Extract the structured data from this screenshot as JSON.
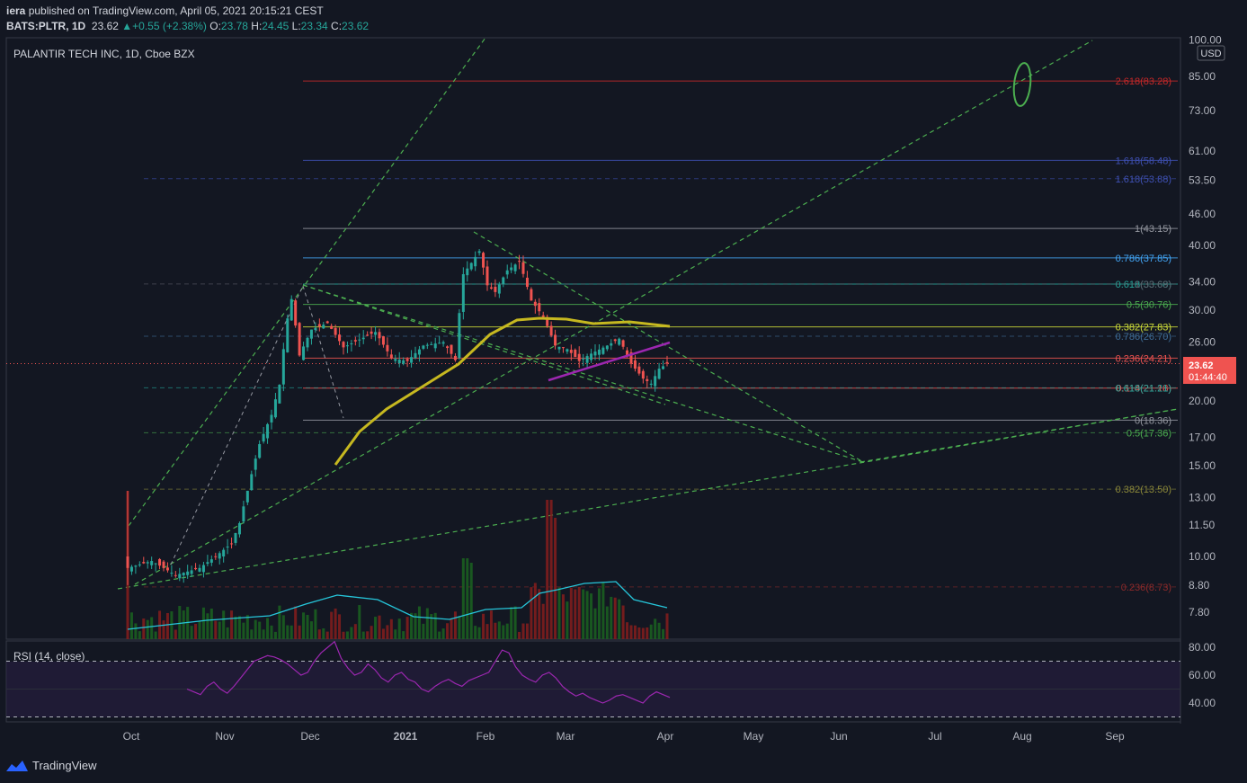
{
  "header": {
    "publisher": "iera",
    "published_text": "published on TradingView.com, April 05, 2021 20:15:21 CEST",
    "symbol": "BATS:PLTR, 1D",
    "last": "23.62",
    "change": "+0.55 (+2.38%)",
    "o_label": "O:",
    "o": "23.78",
    "h_label": "H:",
    "h": "24.45",
    "l_label": "L:",
    "l": "23.34",
    "c_label": "C:",
    "c": "23.62"
  },
  "chart_title": "PALANTIR TECH INC, 1D, Cboe BZX",
  "currency": "USD",
  "price_tag": {
    "price": "23.62",
    "countdown": "01:44:40"
  },
  "rsi_title": "RSI (14, close)",
  "brand": "TradingView",
  "colors": {
    "background": "#131722",
    "up": "#26a69a",
    "down": "#ef5350",
    "ma": "#c6b820",
    "purple_line": "#9c27b0",
    "trend": "#4caf50",
    "volume_ma": "#26c6da",
    "rsi": "#9c27b0"
  },
  "chart_data": [
    {
      "type": "candlestick",
      "title": "PALANTIR TECH INC, 1D, Cboe BZX",
      "y_scale": "log",
      "ylim": [
        7.2,
        102
      ],
      "x_ticks": [
        "Oct",
        "Nov",
        "Dec",
        "2021",
        "Feb",
        "Mar",
        "Apr",
        "May",
        "Jun",
        "Jul",
        "Aug",
        "Sep"
      ],
      "y_ticks": [
        "100.00",
        "85.00",
        "73.00",
        "61.00",
        "53.50",
        "46.00",
        "40.00",
        "34.00",
        "30.00",
        "26.00",
        "20.00",
        "17.00",
        "15.00",
        "13.00",
        "11.50",
        "10.00",
        "8.80",
        "7.80"
      ],
      "fib_levels": [
        {
          "label": "2.618(83.28)",
          "value": 83.28,
          "color": "#c62828"
        },
        {
          "label": "1.618(58.48)",
          "value": 58.48,
          "color": "#3f51b5"
        },
        {
          "label": "1.618(53.88)",
          "value": 53.88,
          "color": "#3f51b5"
        },
        {
          "label": "1(43.15)",
          "value": 43.15,
          "color": "#9598a1"
        },
        {
          "label": "0.786(37.85)",
          "value": 37.85,
          "color": "#42a5f5"
        },
        {
          "label": "0.618(33.68)",
          "value": 33.68,
          "color": "#26a69a"
        },
        {
          "label": "1(33.69)",
          "value": 33.69,
          "color": "#5b5e68"
        },
        {
          "label": "0.5(30.76)",
          "value": 30.76,
          "color": "#4caf50"
        },
        {
          "label": "0.382(27.83)",
          "value": 27.83,
          "color": "#cddc39"
        },
        {
          "label": "0.786(26.70)",
          "value": 26.7,
          "color": "#3f6e99"
        },
        {
          "label": "0.236(24.21)",
          "value": 24.21,
          "color": "#ef5350"
        },
        {
          "label": "0.114(21.18)",
          "value": 21.18,
          "color": "#ef5350"
        },
        {
          "label": "0.618(21.21)",
          "value": 21.21,
          "color": "#26a69a"
        },
        {
          "label": "0(18.36)",
          "value": 18.36,
          "color": "#9598a1"
        },
        {
          "label": "0.5(17.36)",
          "value": 17.36,
          "color": "#4caf50"
        },
        {
          "label": "0.382(13.50)",
          "value": 13.5,
          "color": "#8d8a3a"
        },
        {
          "label": "0.236(8.73)",
          "value": 8.73,
          "color": "#8e2a2a"
        }
      ],
      "last_price": 23.62
    },
    {
      "type": "line",
      "title": "RSI (14, close)",
      "ylim": [
        30,
        85
      ],
      "y_ticks": [
        "80.00",
        "60.00",
        "40.00"
      ],
      "bands": [
        70,
        30
      ]
    }
  ]
}
